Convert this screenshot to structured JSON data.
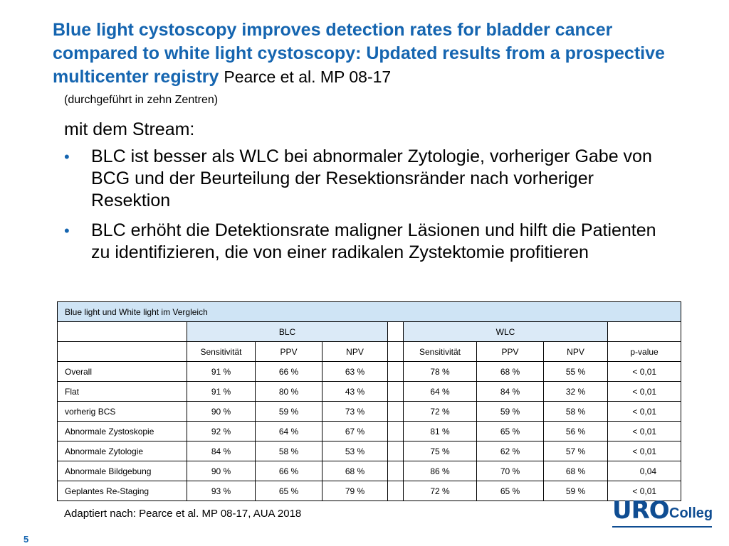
{
  "slide": {
    "title": "Blue light cystoscopy improves detection rates for bladder cancer compared to white light cystoscopy: Updated results from a prospective multicenter registry",
    "title_author": "Pearce et al. MP 08-17",
    "subnote": "(durchgeführt in zehn Zentren)",
    "lead": "mit dem Stream:",
    "bullets": [
      "BLC ist besser als WLC bei abnormaler Zytologie, vorheriger Gabe von BCG und der Beurteilung der Resektionsränder nach vorheriger Resektion",
      "BLC erhöht die Detektionsrate maligner Läsionen und hilft die Patienten zu identifizieren, die von einer radikalen Zystektomie profitieren"
    ],
    "bullet_glyph": "•",
    "source": "Adaptiert nach: Pearce et al. MP 08-17, AUA 2018",
    "page_number": "5"
  },
  "table": {
    "caption": "Blue light und White light im Vergleich",
    "group_blc": "BLC",
    "group_wlc": "WLC",
    "headers": [
      "Sensitivität",
      "PPV",
      "NPV",
      "Sensitivität",
      "PPV",
      "NPV",
      "p-value"
    ],
    "rows": [
      {
        "label": "Overall",
        "values": [
          "91 %",
          "66 %",
          "63 %",
          "78 %",
          "68 %",
          "55 %",
          "< 0,01"
        ]
      },
      {
        "label": "Flat",
        "values": [
          "91 %",
          "80 %",
          "43 %",
          "64 %",
          "84 %",
          "32 %",
          "< 0,01"
        ]
      },
      {
        "label": "vorherig BCS",
        "values": [
          "90 %",
          "59 %",
          "73 %",
          "72 %",
          "59 %",
          "58 %",
          "< 0,01"
        ]
      },
      {
        "label": "Abnormale Zystoskopie",
        "values": [
          "92 %",
          "64 %",
          "67 %",
          "81 %",
          "65 %",
          "56 %",
          "< 0,01"
        ]
      },
      {
        "label": "Abnormale Zytologie",
        "values": [
          "84 %",
          "58 %",
          "53 %",
          "75 %",
          "62 %",
          "57 %",
          "< 0,01"
        ]
      },
      {
        "label": "Abnormale Bildgebung",
        "values": [
          "90 %",
          "66 %",
          "68 %",
          "86 %",
          "70 %",
          "68 %",
          "0,04"
        ]
      },
      {
        "label": "Geplantes Re-Staging",
        "values": [
          "93 %",
          "65 %",
          "79 %",
          "72 %",
          "65 %",
          "59 %",
          "< 0,01"
        ]
      }
    ]
  },
  "logo": {
    "uro": "URO",
    "colleg": "Colleg"
  },
  "colors": {
    "title_blue": "#1565b0",
    "caption_bg": "#cfe4f5",
    "group_bg": "#dbeaf7",
    "logo_blue": "#0f4d92"
  }
}
